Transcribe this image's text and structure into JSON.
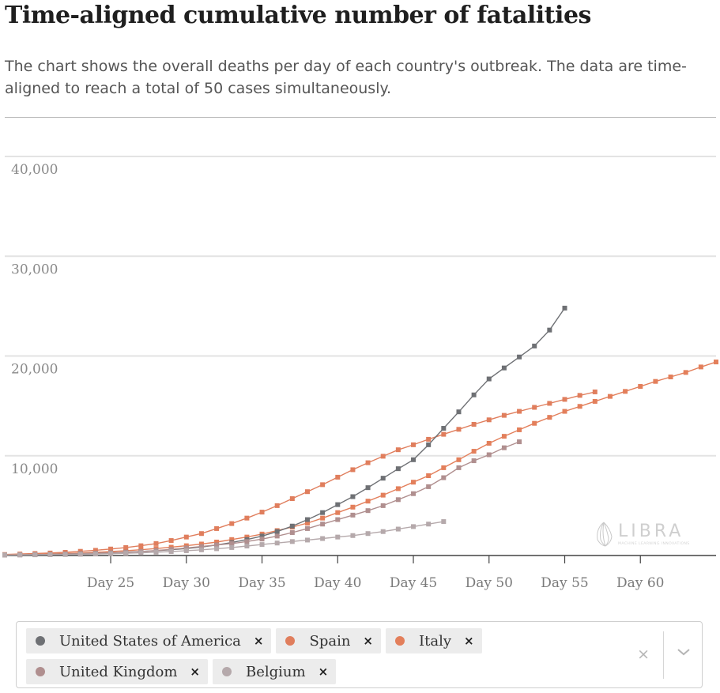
{
  "title": "Time-aligned cumulative number of fatalities",
  "subtitle": "The chart shows the overall deaths per day of each country's outbreak. The data are time-aligned to reach a total of 50 cases simultaneously.",
  "logo": {
    "name": "LIBRA",
    "tagline": "MACHINE LEARNING INNOVATIONS"
  },
  "legend": {
    "chips": [
      {
        "label": "United States of America",
        "color": "#6e7074"
      },
      {
        "label": "Spain",
        "color": "#e07e5d"
      },
      {
        "label": "Italy",
        "color": "#e37f5b"
      },
      {
        "label": "United Kingdom",
        "color": "#b08f8f"
      },
      {
        "label": "Belgium",
        "color": "#b5a9ab"
      }
    ],
    "remove_glyph": "×",
    "clear_glyph": "×"
  },
  "chart_data": {
    "type": "line",
    "x_unit": "Day",
    "xlim": [
      18,
      65
    ],
    "ylim": [
      0,
      40000
    ],
    "x_ticks": [
      25,
      30,
      35,
      40,
      45,
      50,
      55,
      60
    ],
    "x_tick_labels": [
      "Day 25",
      "Day 30",
      "Day 35",
      "Day 40",
      "Day 45",
      "Day 50",
      "Day 55",
      "Day 60"
    ],
    "y_ticks": [
      10000,
      20000,
      30000,
      40000
    ],
    "y_tick_labels": [
      "10,000",
      "20,000",
      "30,000",
      "40,000"
    ],
    "grid": true,
    "legend_position": "bottom",
    "series": [
      {
        "name": "Italy",
        "color": "#e37f5b",
        "x": [
          18,
          19,
          20,
          21,
          22,
          23,
          24,
          25,
          26,
          27,
          28,
          29,
          30,
          31,
          32,
          33,
          34,
          35,
          36,
          37,
          38,
          39,
          40,
          41,
          42,
          43,
          44,
          45,
          46,
          47,
          48,
          49,
          50,
          51,
          52,
          53,
          54,
          55,
          56,
          57,
          58,
          59,
          60,
          61,
          62,
          63,
          64,
          65
        ],
        "y": [
          50,
          80,
          110,
          150,
          200,
          250,
          320,
          400,
          480,
          580,
          700,
          830,
          980,
          1150,
          1350,
          1600,
          1850,
          2150,
          2500,
          2850,
          3250,
          3750,
          4300,
          4850,
          5450,
          6050,
          6700,
          7350,
          8000,
          8800,
          9600,
          10450,
          11250,
          11950,
          12600,
          13250,
          13850,
          14450,
          14950,
          15450,
          15950,
          16450,
          16950,
          17450,
          17900,
          18350,
          18900,
          19400
        ]
      },
      {
        "name": "Spain",
        "color": "#e07e5d",
        "x": [
          18,
          19,
          20,
          21,
          22,
          23,
          24,
          25,
          26,
          27,
          28,
          29,
          30,
          31,
          32,
          33,
          34,
          35,
          36,
          37,
          38,
          39,
          40,
          41,
          42,
          43,
          44,
          45,
          46,
          47,
          48,
          49,
          50,
          51,
          52,
          53,
          54,
          55,
          56,
          57
        ],
        "y": [
          100,
          150,
          200,
          250,
          320,
          420,
          520,
          650,
          800,
          980,
          1200,
          1500,
          1850,
          2200,
          2700,
          3200,
          3750,
          4350,
          5000,
          5700,
          6400,
          7100,
          7850,
          8600,
          9300,
          9950,
          10600,
          11100,
          11650,
          12150,
          12650,
          13150,
          13600,
          14050,
          14450,
          14850,
          15250,
          15650,
          16050,
          16400
        ]
      },
      {
        "name": "United States of America",
        "color": "#6e7074",
        "x": [
          18,
          19,
          20,
          21,
          22,
          23,
          24,
          25,
          26,
          27,
          28,
          29,
          30,
          31,
          32,
          33,
          34,
          35,
          36,
          37,
          38,
          39,
          40,
          41,
          42,
          43,
          44,
          45,
          46,
          47,
          48,
          49,
          50,
          51,
          52,
          53,
          54,
          55
        ],
        "y": [
          50,
          70,
          90,
          110,
          140,
          180,
          220,
          270,
          330,
          400,
          480,
          580,
          700,
          850,
          1050,
          1300,
          1600,
          1950,
          2400,
          2950,
          3600,
          4300,
          5100,
          5900,
          6800,
          7750,
          8700,
          9600,
          11100,
          12750,
          14400,
          16100,
          17700,
          18800,
          19900,
          21000,
          22600,
          24800
        ]
      },
      {
        "name": "United Kingdom",
        "color": "#b08f8f",
        "x": [
          18,
          19,
          20,
          21,
          22,
          23,
          24,
          25,
          26,
          27,
          28,
          29,
          30,
          31,
          32,
          33,
          34,
          35,
          36,
          37,
          38,
          39,
          40,
          41,
          42,
          43,
          44,
          45,
          46,
          47,
          48,
          49,
          50,
          51,
          52
        ],
        "y": [
          50,
          70,
          90,
          110,
          140,
          180,
          220,
          270,
          330,
          400,
          500,
          620,
          760,
          900,
          1050,
          1200,
          1400,
          1650,
          1950,
          2300,
          2700,
          3150,
          3600,
          4050,
          4500,
          5000,
          5600,
          6200,
          6900,
          7800,
          8800,
          9500,
          10100,
          10800,
          11400
        ]
      },
      {
        "name": "Belgium",
        "color": "#b5a9ab",
        "x": [
          18,
          19,
          20,
          21,
          22,
          23,
          24,
          25,
          26,
          27,
          28,
          29,
          30,
          31,
          32,
          33,
          34,
          35,
          36,
          37,
          38,
          39,
          40,
          41,
          42,
          43,
          44,
          45,
          46,
          47
        ],
        "y": [
          50,
          60,
          70,
          85,
          100,
          120,
          150,
          180,
          220,
          270,
          330,
          400,
          480,
          570,
          680,
          800,
          950,
          1100,
          1250,
          1400,
          1550,
          1700,
          1850,
          2000,
          2200,
          2400,
          2650,
          2900,
          3150,
          3400
        ]
      }
    ]
  }
}
